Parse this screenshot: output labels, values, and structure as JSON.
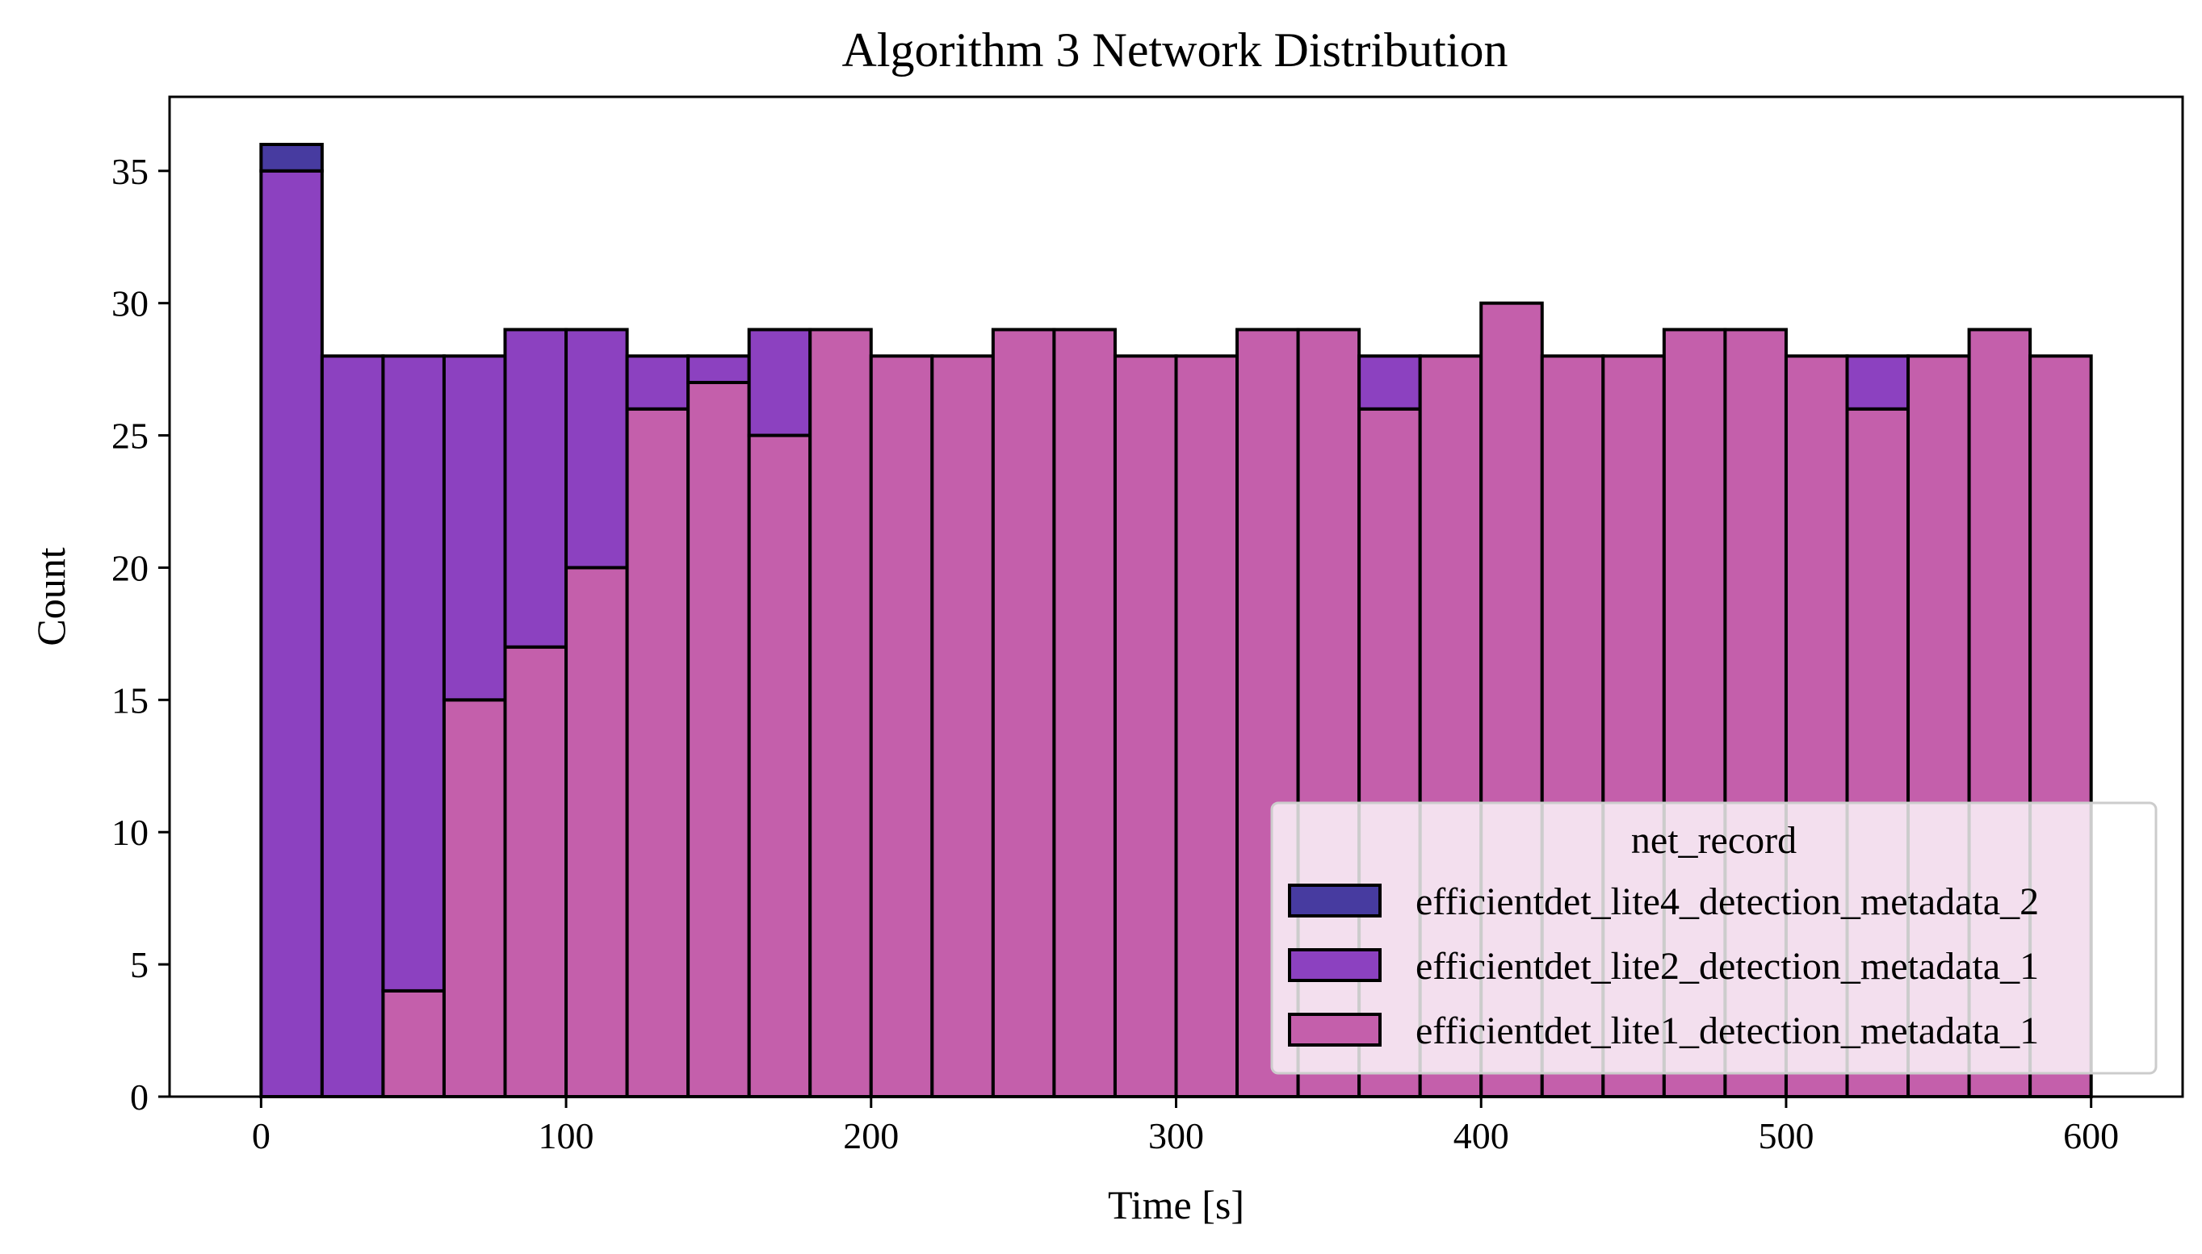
{
  "chart_data": {
    "type": "bar",
    "stacked": true,
    "title": "Algorithm 3 Network Distribution",
    "xlabel": "Time [s]",
    "ylabel": "Count",
    "xlim": [
      -30,
      630
    ],
    "ylim": [
      0,
      37.8
    ],
    "xticks": [
      0,
      100,
      200,
      300,
      400,
      500,
      600
    ],
    "yticks": [
      0,
      5,
      10,
      15,
      20,
      25,
      30,
      35
    ],
    "bin_edges": [
      0,
      20,
      40,
      60,
      80,
      100,
      120,
      140,
      160,
      180,
      200,
      220,
      240,
      260,
      280,
      300,
      320,
      340,
      360,
      380,
      400,
      420,
      440,
      460,
      480,
      500,
      520,
      540,
      560,
      580,
      600
    ],
    "legend": {
      "title": "net_record",
      "location": "lower-right"
    },
    "series": [
      {
        "name": "efficientdet_lite1_detection_metadata_1",
        "color": "#c45fab",
        "values": [
          0,
          0,
          4,
          15,
          17,
          20,
          26,
          27,
          25,
          29,
          28,
          28,
          29,
          29,
          28,
          28,
          29,
          29,
          26,
          28,
          30,
          28,
          28,
          29,
          29,
          28,
          26,
          28,
          29,
          28
        ]
      },
      {
        "name": "efficientdet_lite2_detection_metadata_1",
        "color": "#8c41c0",
        "values": [
          35,
          28,
          24,
          13,
          12,
          9,
          2,
          1,
          4,
          0,
          0,
          0,
          0,
          0,
          0,
          0,
          0,
          0,
          2,
          0,
          0,
          0,
          0,
          0,
          0,
          0,
          2,
          0,
          0,
          0
        ]
      },
      {
        "name": "efficientdet_lite4_detection_metadata_2",
        "color": "#473ba0",
        "values": [
          1,
          0,
          0,
          0,
          0,
          0,
          0,
          0,
          0,
          0,
          0,
          0,
          0,
          0,
          0,
          0,
          0,
          0,
          0,
          0,
          0,
          0,
          0,
          0,
          0,
          0,
          0,
          0,
          0,
          0
        ]
      }
    ],
    "legend_order": [
      2,
      1,
      0
    ]
  }
}
